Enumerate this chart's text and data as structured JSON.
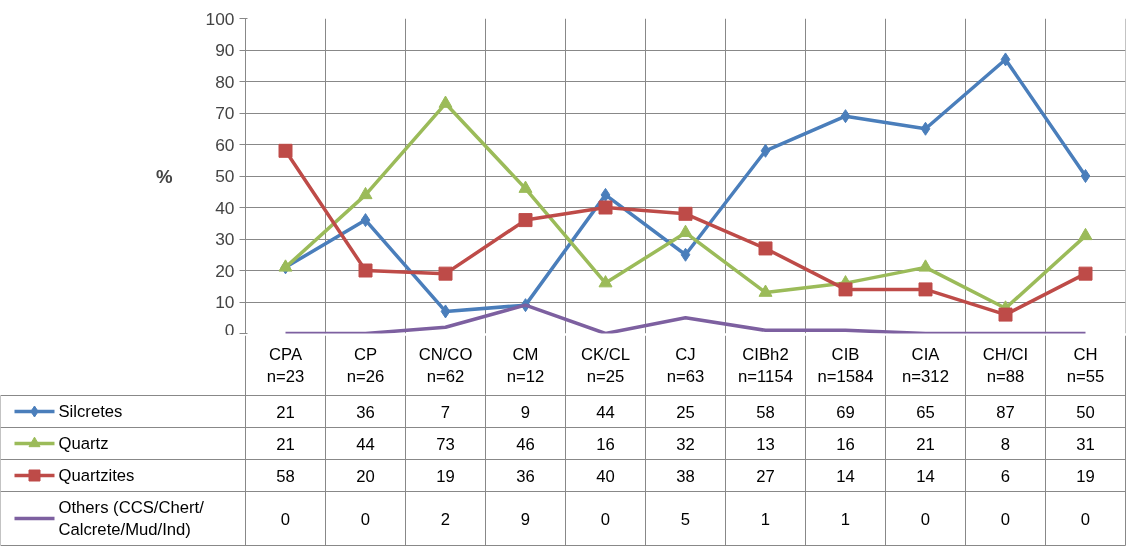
{
  "chart_data": {
    "type": "line",
    "ylabel": "%",
    "categories": [
      "CPA\nn=23",
      "CP\nn=26",
      "CN/CO\nn=62",
      "CM\nn=12",
      "CK/CL\nn=25",
      "CJ\nn=63",
      "CIBh2\nn=1154",
      "CIB\nn=1584",
      "CIA\nn=312",
      "CH/CI\nn=88",
      "CH\nn=55"
    ],
    "series": [
      {
        "name": "Silcretes",
        "color": "#4a7ebb",
        "marker": "diamond",
        "values": [
          21,
          36,
          7,
          9,
          44,
          25,
          58,
          69,
          65,
          87,
          50
        ]
      },
      {
        "name": "Quartz",
        "color": "#9bbb59",
        "marker": "triangle",
        "values": [
          21,
          44,
          73,
          46,
          16,
          32,
          13,
          16,
          21,
          8,
          31
        ]
      },
      {
        "name": "Quartzites",
        "color": "#be4b48",
        "marker": "square",
        "values": [
          58,
          20,
          19,
          36,
          40,
          38,
          27,
          14,
          14,
          6,
          19
        ]
      },
      {
        "name": "Others (CCS/Chert/Calcrete/Mud/Ind)",
        "color": "#7d60a0",
        "marker": "none",
        "values": [
          0,
          0,
          2,
          9,
          0,
          5,
          1,
          1,
          0,
          0,
          0
        ]
      }
    ],
    "ylim": [
      0,
      100
    ],
    "yticks": [
      0,
      10,
      20,
      30,
      40,
      50,
      60,
      70,
      80,
      90,
      100
    ],
    "grid": "y",
    "legend": "left",
    "data_labels": true,
    "line_style": "solid"
  }
}
